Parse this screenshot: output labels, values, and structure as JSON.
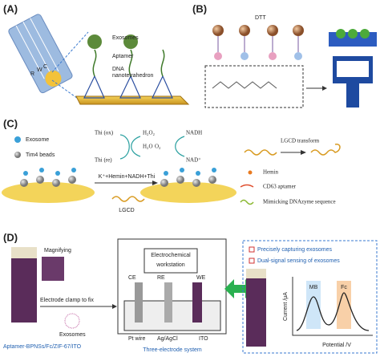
{
  "panels": {
    "a": {
      "label": "(A)",
      "electrode": [
        "R",
        "W",
        "C"
      ],
      "exosomes": "Exosomes",
      "aptamer": "Aptamer",
      "dna": [
        "DNA",
        "nanotetrahedron"
      ]
    },
    "b": {
      "label": "(B)",
      "dtt": "DTT"
    },
    "c": {
      "label": "(C)",
      "exosome": "Exosome",
      "beads": "Tim4 beads",
      "thi_ox": "Thi (ox)",
      "thi_re": "Thi (re)",
      "h2o2": "H₂O₂",
      "h2o": "H₂O",
      "o2": "O₂",
      "nadh": "NADH",
      "nad": "NAD⁺",
      "reaction": "K⁺+Hemin+NADH+Thi",
      "lgcd": "LGCD",
      "transform": "LGCD transform",
      "hemin": "Hemin",
      "cd63": "CD63 aptamer",
      "dnazyme": "Mimicking DNAzyme sequence"
    },
    "d": {
      "label": "(D)",
      "magnifying": "Magnifying",
      "clamp": "Electrode clamp to fix",
      "exosomes": "Exosomes",
      "electrode_name": "Aptamer-BPNSs/Fc/ZIF-67/ITO",
      "workstation": [
        "Electrochemical",
        "workstation"
      ],
      "ce": "CE",
      "re": "RE",
      "we": "WE",
      "pt": "Pt wire",
      "agcl": "Ag/AgCl",
      "ito": "ITO",
      "system": "Three-electrode system",
      "legend1": "Precisely capturing exosomes",
      "legend2": "Dual-signal sensing of exosomes",
      "mb": "MB",
      "fc": "Fc",
      "ylabel": "Current /μA",
      "xlabel": "Potential /V"
    }
  }
}
